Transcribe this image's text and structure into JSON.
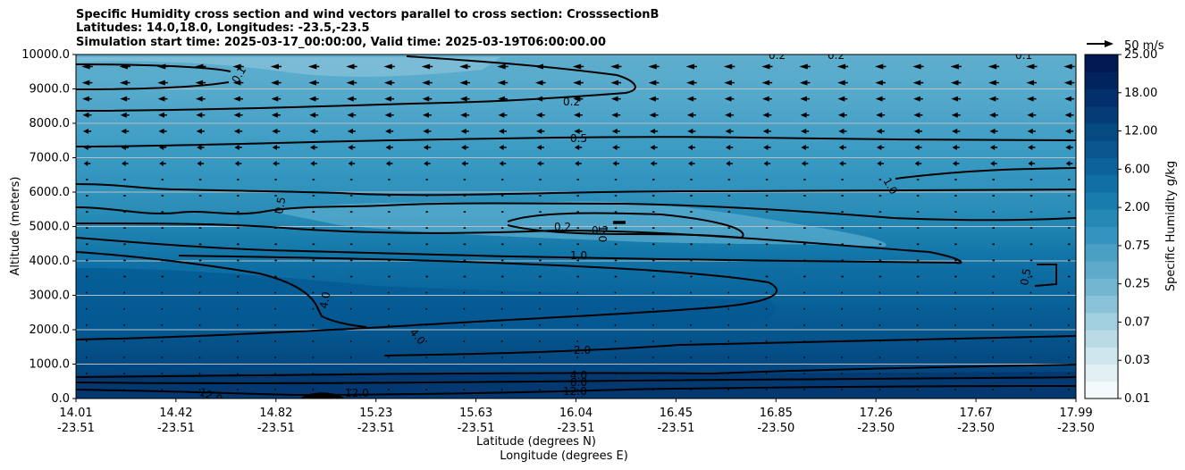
{
  "chart_data": {
    "type": "contour",
    "title_lines": [
      "Specific Humidity cross section and wind vectors parallel to cross section: CrosssectionB",
      "Latitudes: 14.0,18.0, Longitudes: -23.5,-23.5",
      "Simulation start time: 2025-03-17_00:00:00, Valid time: 2025-03-19T06:00:00.00"
    ],
    "ylabel": "Altitude (meters)",
    "xlabel_lat": "Latitude (degrees N)",
    "xlabel_lon": "Longitude (degrees E)",
    "ylim": [
      0,
      10000
    ],
    "y_ticks": [
      "0.0",
      "1000.0",
      "2000.0",
      "3000.0",
      "4000.0",
      "5000.0",
      "6000.0",
      "7000.0",
      "8000.0",
      "9000.0",
      "10000.0"
    ],
    "x_ticks_lat": [
      "14.01",
      "14.42",
      "14.82",
      "15.23",
      "15.63",
      "16.04",
      "16.45",
      "16.85",
      "17.26",
      "17.67",
      "17.99"
    ],
    "x_ticks_lon": [
      "-23.51",
      "-23.51",
      "-23.51",
      "-23.51",
      "-23.51",
      "-23.51",
      "-23.51",
      "-23.50",
      "-23.50",
      "-23.50",
      "-23.50"
    ],
    "colorbar": {
      "label": "Specific Humidity g/kg",
      "levels": [
        "0.01",
        "0.03",
        "0.07",
        "0.25",
        "0.75",
        "2.00",
        "6.00",
        "12.00",
        "18.00",
        "25.00"
      ],
      "tick_labels": [
        "0.01",
        "0.03",
        "0.07",
        "0.25",
        "0.75",
        "2.00",
        "6.00",
        "12.00",
        "18.00",
        "25.00"
      ],
      "colors": [
        "#f4fafc",
        "#e2f0f4",
        "#cfe6ee",
        "#b8dbe6",
        "#a2cfe0",
        "#8ac3d9",
        "#73b6d1",
        "#5eaacb",
        "#4a9fc5",
        "#3594bd",
        "#2589b5",
        "#187dad",
        "#0f70a3",
        "#0b6399",
        "#08568d",
        "#064a82",
        "#043d76",
        "#03306a",
        "#02245e",
        "#011852"
      ]
    },
    "contour_labels": [
      "0.1",
      "0.2",
      "0.5",
      "1.0",
      "2.0",
      "4.0",
      "8.0",
      "12.0"
    ],
    "wind_reference": "50 m/s",
    "wind_direction": "toward lower latitude (southward) aloft"
  }
}
